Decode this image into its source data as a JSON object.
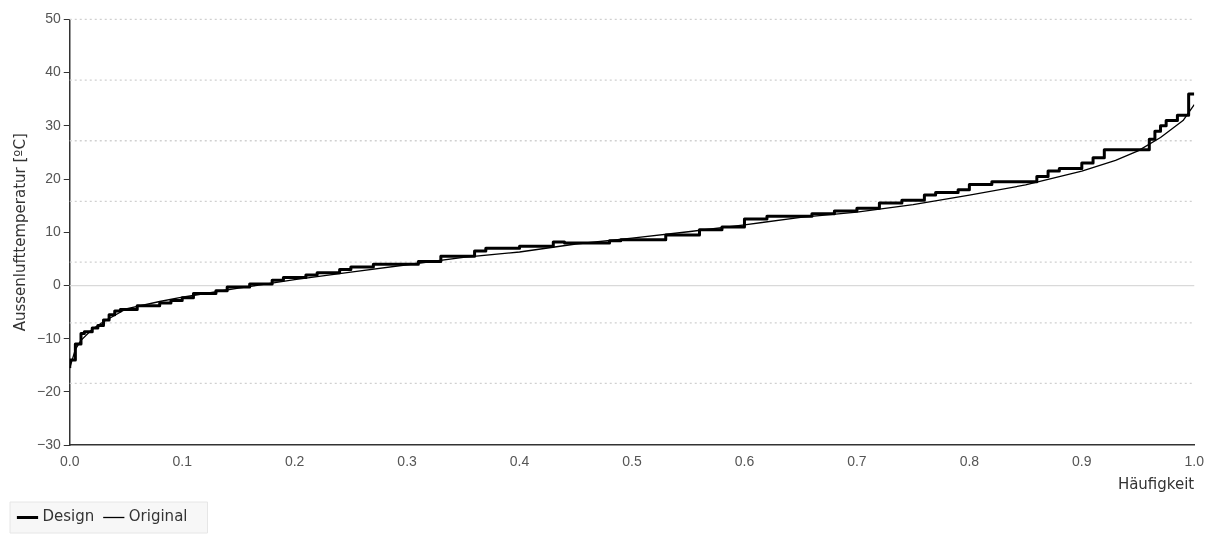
{
  "chart_data": {
    "type": "line",
    "xlabel": "Häufigkeit",
    "ylabel": "Aussenlufttemperatur [ºC]",
    "xlim": [
      0,
      1
    ],
    "xticks": [
      {
        "value": 0,
        "label": "0.0"
      },
      0.1,
      0.2,
      0.3,
      0.4,
      0.5,
      0.6,
      0.7,
      0.8,
      0.9,
      {
        "value": 1,
        "label": "1.0"
      }
    ],
    "ylim": [
      -30,
      50
    ],
    "yticks": [
      {
        "value": -30,
        "label": "−30"
      },
      {
        "value": -20,
        "label": "−20"
      },
      {
        "value": -10,
        "label": "−10"
      },
      0,
      10,
      20,
      30,
      40,
      50
    ],
    "grid": false,
    "legend": "bottom left",
    "ref_lines": [
      {
        "axis": "y",
        "value": 0,
        "color": "#d9d9d9",
        "line_style": "solid"
      },
      {
        "axis": "y",
        "value": 50,
        "color": "#d0d0d0",
        "line_style": "dotted"
      },
      {
        "axis": "y",
        "value": 38.6,
        "color": "#d0d0d0",
        "line_style": "dotted"
      },
      {
        "axis": "y",
        "value": 27.2,
        "color": "#d0d0d0",
        "line_style": "dotted"
      },
      {
        "axis": "y",
        "value": 15.8,
        "color": "#d0d0d0",
        "line_style": "dotted"
      },
      {
        "axis": "y",
        "value": 4.4,
        "color": "#d0d0d0",
        "line_style": "dotted"
      },
      {
        "axis": "y",
        "value": -7,
        "color": "#d0d0d0",
        "line_style": "dotted"
      },
      {
        "axis": "y",
        "value": -18.4,
        "color": "#d0d0d0",
        "line_style": "dotted"
      }
    ],
    "series": [
      {
        "name": "Design",
        "type": "step",
        "color": "#000000",
        "x": [
          0,
          0.005,
          0.01,
          0.013,
          0.02,
          0.025,
          0.03,
          0.035,
          0.04,
          0.045,
          0.06,
          0.08,
          0.09,
          0.1,
          0.11,
          0.13,
          0.14,
          0.16,
          0.18,
          0.19,
          0.21,
          0.22,
          0.24,
          0.25,
          0.27,
          0.31,
          0.33,
          0.36,
          0.37,
          0.4,
          0.43,
          0.44,
          0.48,
          0.49,
          0.53,
          0.56,
          0.58,
          0.6,
          0.62,
          0.66,
          0.68,
          0.7,
          0.72,
          0.74,
          0.76,
          0.77,
          0.79,
          0.8,
          0.82,
          0.86,
          0.87,
          0.88,
          0.9,
          0.91,
          0.92,
          0.94,
          0.96,
          0.965,
          0.97,
          0.975,
          0.985,
          0.995,
          1
        ],
        "values": [
          -15.5,
          -14,
          -11,
          -9,
          -8.7,
          -8,
          -7.5,
          -6.5,
          -5.5,
          -4.8,
          -4.5,
          -3.8,
          -3.3,
          -2.8,
          -2.3,
          -1.5,
          -1,
          -0.3,
          0.3,
          1,
          1.5,
          2,
          2.4,
          3,
          3.5,
          4,
          4.5,
          5.5,
          6.5,
          7,
          7.4,
          8.2,
          8,
          8.4,
          8.6,
          9.5,
          10.5,
          11,
          12.5,
          13,
          13.5,
          14,
          14.5,
          15.5,
          16,
          17,
          17.5,
          18,
          19,
          19.5,
          20.5,
          21.5,
          22,
          23,
          24,
          25.5,
          25.5,
          27.5,
          29,
          30,
          31,
          32,
          36
        ]
      },
      {
        "name": "Original",
        "type": "line",
        "color": "#000000",
        "x": [
          0,
          0.005,
          0.01,
          0.02,
          0.03,
          0.05,
          0.08,
          0.1,
          0.15,
          0.2,
          0.25,
          0.3,
          0.35,
          0.4,
          0.45,
          0.5,
          0.55,
          0.6,
          0.65,
          0.7,
          0.75,
          0.8,
          0.85,
          0.9,
          0.93,
          0.95,
          0.97,
          0.99,
          1
        ],
        "values": [
          -15.5,
          -12,
          -10.3,
          -8.2,
          -6.8,
          -4.4,
          -3,
          -2.2,
          -0.5,
          1.1,
          2.5,
          3.9,
          5.3,
          6.3,
          7.8,
          8.9,
          10.1,
          11.4,
          12.8,
          13.8,
          15.2,
          17,
          18.9,
          21.5,
          23.5,
          25.3,
          27.8,
          31,
          34
        ]
      }
    ]
  }
}
